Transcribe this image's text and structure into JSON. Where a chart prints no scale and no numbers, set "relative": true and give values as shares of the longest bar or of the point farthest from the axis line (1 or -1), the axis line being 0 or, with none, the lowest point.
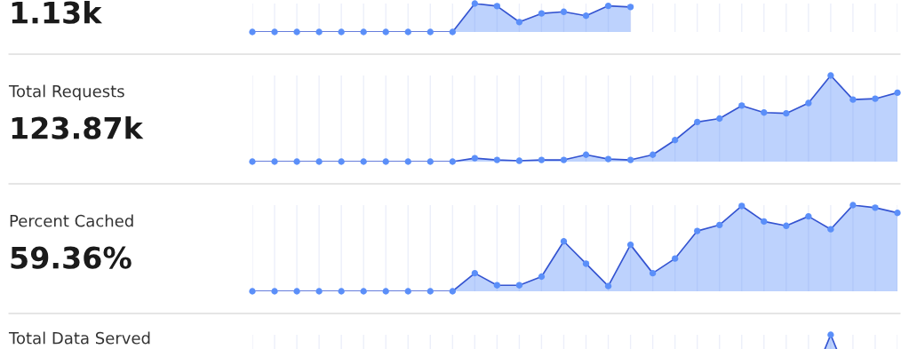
{
  "chart_data": [
    {
      "type": "area",
      "subtitle": "1.13k",
      "relative": true,
      "grid": "x",
      "marker": "circle",
      "categories": [
        null,
        null,
        null,
        null,
        null,
        null,
        null,
        null,
        null,
        null,
        null,
        null,
        null,
        null,
        null,
        null,
        null,
        null,
        null,
        null,
        null,
        null,
        null,
        null,
        null,
        null,
        null,
        null,
        null,
        null
      ],
      "series": [
        {
          "color": "#5b8ff9",
          "values": [
            0,
            0,
            0,
            0,
            0,
            0,
            0,
            0,
            0,
            0,
            1,
            0.91,
            0.35,
            0.65,
            0.71,
            0.57,
            0.92,
            0.88,
            null,
            null,
            null,
            null,
            null,
            null,
            null,
            null,
            null,
            null,
            null,
            null
          ]
        }
      ]
    },
    {
      "type": "area",
      "ylabel": "Total Requests",
      "subtitle": "123.87k",
      "relative": true,
      "grid": "x",
      "marker": "circle",
      "categories": [
        null,
        null,
        null,
        null,
        null,
        null,
        null,
        null,
        null,
        null,
        null,
        null,
        null,
        null,
        null,
        null,
        null,
        null,
        null,
        null,
        null,
        null,
        null,
        null,
        null,
        null,
        null,
        null,
        null,
        null
      ],
      "series": [
        {
          "color": "#5b8ff9",
          "values": [
            0,
            0,
            0,
            0,
            0,
            0,
            0,
            0,
            0,
            0,
            0.04,
            0.02,
            0.01,
            0.02,
            0.02,
            0.08,
            0.03,
            0.02,
            0.08,
            0.25,
            0.46,
            0.5,
            0.65,
            0.57,
            0.56,
            0.68,
            1,
            0.72,
            0.73,
            0.8
          ]
        }
      ]
    },
    {
      "type": "area",
      "ylabel": "Percent Cached",
      "subtitle": "59.36%",
      "relative": true,
      "grid": "x",
      "marker": "circle",
      "categories": [
        null,
        null,
        null,
        null,
        null,
        null,
        null,
        null,
        null,
        null,
        null,
        null,
        null,
        null,
        null,
        null,
        null,
        null,
        null,
        null,
        null,
        null,
        null,
        null,
        null,
        null,
        null,
        null,
        null,
        null
      ],
      "series": [
        {
          "color": "#5b8ff9",
          "values": [
            0,
            0,
            0,
            0,
            0,
            0,
            0,
            0,
            0,
            0,
            0.21,
            0.07,
            0.07,
            0.17,
            0.58,
            0.32,
            0.06,
            0.54,
            0.21,
            0.38,
            0.7,
            0.77,
            0.99,
            0.81,
            0.76,
            0.87,
            0.72,
            1,
            0.97,
            0.91
          ]
        }
      ]
    },
    {
      "type": "area",
      "ylabel": "Total Data Served",
      "relative": true,
      "grid": "x",
      "marker": "circle",
      "categories": [
        null,
        null,
        null,
        null,
        null,
        null,
        null,
        null,
        null,
        null,
        null,
        null,
        null,
        null,
        null,
        null,
        null,
        null,
        null,
        null,
        null,
        null,
        null,
        null,
        null,
        null,
        null,
        null,
        null,
        null
      ],
      "series": [
        {
          "color": "#5b8ff9",
          "values": [
            null,
            null,
            null,
            null,
            null,
            null,
            null,
            null,
            null,
            null,
            null,
            null,
            null,
            null,
            null,
            null,
            null,
            null,
            null,
            null,
            null,
            null,
            null,
            null,
            null,
            0.37,
            1,
            0.37,
            null,
            null
          ]
        }
      ]
    }
  ]
}
